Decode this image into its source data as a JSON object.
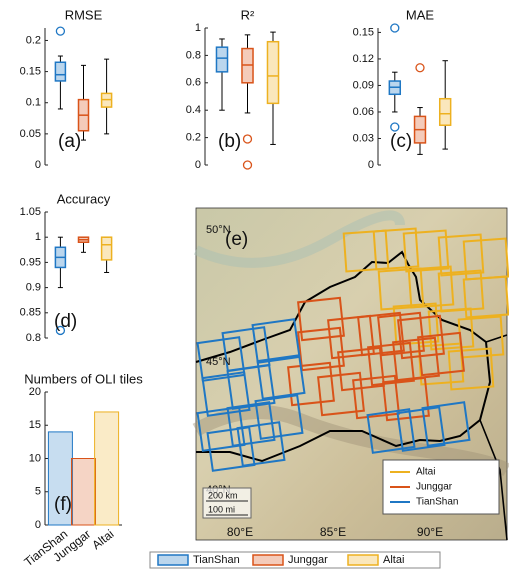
{
  "chart_data": [
    {
      "type": "box",
      "title": "RMSE",
      "label": "(a)",
      "colors": [
        "#1f77c4",
        "#d95319",
        "#edb120"
      ],
      "ylim": [
        0,
        0.22
      ],
      "yticks": [
        0,
        0.05,
        0.1,
        0.15,
        0.2
      ],
      "boxes": [
        {
          "min": 0.09,
          "q1": 0.135,
          "median": 0.145,
          "q3": 0.165,
          "max": 0.175,
          "outliers": [
            0.215
          ]
        },
        {
          "min": 0.04,
          "q1": 0.055,
          "median": 0.08,
          "q3": 0.105,
          "max": 0.16,
          "outliers": []
        },
        {
          "min": 0.05,
          "q1": 0.093,
          "median": 0.105,
          "q3": 0.115,
          "max": 0.17,
          "outliers": []
        }
      ]
    },
    {
      "type": "box",
      "title": "R²",
      "label": "(b)",
      "colors": [
        "#1f77c4",
        "#d95319",
        "#edb120"
      ],
      "ylim": [
        0,
        1
      ],
      "yticks": [
        0,
        0.2,
        0.4,
        0.6,
        0.8,
        1
      ],
      "boxes": [
        {
          "min": 0.4,
          "q1": 0.68,
          "median": 0.78,
          "q3": 0.86,
          "max": 0.92,
          "outliers": []
        },
        {
          "min": 0.38,
          "q1": 0.6,
          "median": 0.73,
          "q3": 0.85,
          "max": 0.95,
          "outliers": [
            0.19,
            0
          ]
        },
        {
          "min": 0.15,
          "q1": 0.45,
          "median": 0.65,
          "q3": 0.9,
          "max": 0.97,
          "outliers": []
        }
      ]
    },
    {
      "type": "box",
      "title": "MAE",
      "label": "(c)",
      "colors": [
        "#1f77c4",
        "#d95319",
        "#edb120"
      ],
      "ylim": [
        0,
        0.155
      ],
      "yticks": [
        0,
        0.03,
        0.06,
        0.09,
        0.12,
        0.15
      ],
      "boxes": [
        {
          "min": 0.06,
          "q1": 0.08,
          "median": 0.088,
          "q3": 0.095,
          "max": 0.105,
          "outliers": [
            0.155,
            0.043
          ]
        },
        {
          "min": 0.012,
          "q1": 0.025,
          "median": 0.04,
          "q3": 0.055,
          "max": 0.065,
          "outliers": [
            0.11
          ]
        },
        {
          "min": 0.018,
          "q1": 0.045,
          "median": 0.058,
          "q3": 0.075,
          "max": 0.118,
          "outliers": []
        }
      ]
    },
    {
      "type": "box",
      "title": "Accuracy",
      "label": "(d)",
      "colors": [
        "#1f77c4",
        "#d95319",
        "#edb120"
      ],
      "ylim": [
        0.8,
        1.05
      ],
      "yticks": [
        0.8,
        0.85,
        0.9,
        0.95,
        1,
        1.05
      ],
      "boxes": [
        {
          "min": 0.9,
          "q1": 0.94,
          "median": 0.96,
          "q3": 0.98,
          "max": 1.0,
          "outliers": [
            0.815
          ]
        },
        {
          "min": 0.97,
          "q1": 0.99,
          "median": 0.995,
          "q3": 1.0,
          "max": 1.0,
          "outliers": []
        },
        {
          "min": 0.93,
          "q1": 0.955,
          "median": 0.985,
          "q3": 1.0,
          "max": 1.0,
          "outliers": []
        }
      ]
    },
    {
      "type": "bar",
      "title": "Numbers of OLI tiles",
      "label": "(f)",
      "colors": [
        "#1f77c4",
        "#d95319",
        "#edb120"
      ],
      "categories": [
        "TianShan",
        "Junggar",
        "Altai"
      ],
      "values": [
        14,
        10,
        17
      ],
      "ylim": [
        0,
        20
      ],
      "yticks": [
        0,
        5,
        10,
        15,
        20
      ]
    }
  ],
  "map": {
    "label": "(e)",
    "lat_labels": [
      "50°N",
      "45°N",
      "40°N"
    ],
    "lon_labels": [
      "80°E",
      "85°E",
      "90°E"
    ],
    "legend": [
      {
        "name": "Altai",
        "color": "#edb120"
      },
      {
        "name": "Junggar",
        "color": "#d95319"
      },
      {
        "name": "TianShan",
        "color": "#1f77c4"
      }
    ],
    "scale": [
      "200 km",
      "100 mi"
    ]
  },
  "legend": [
    {
      "name": "TianShan",
      "color": "#1f77c4"
    },
    {
      "name": "Junggar",
      "color": "#d95319"
    },
    {
      "name": "Altai",
      "color": "#edb120"
    }
  ]
}
